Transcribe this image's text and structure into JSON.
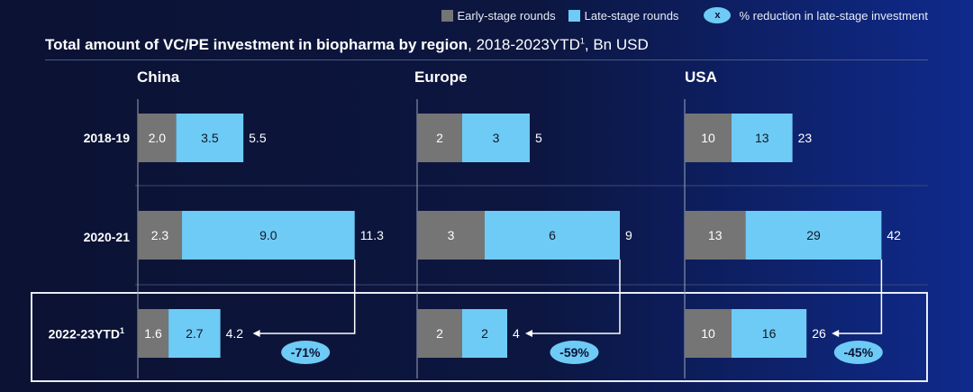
{
  "legend": {
    "early": "Early-stage rounds",
    "late": "Late-stage rounds",
    "bubble_symbol": "x",
    "bubble_label": "% reduction in late-stage investment"
  },
  "title": {
    "bold": "Total amount of VC/PE investment in biopharma by region",
    "rest": ", 2018-2023YTD",
    "sup": "1",
    "unit": ", Bn USD"
  },
  "colors": {
    "early": "#757575",
    "late": "#6ecbf5",
    "bubble": "#6ecbf5",
    "frame": "#e8ecf5"
  },
  "periods": [
    {
      "label": "2018-19",
      "sup": ""
    },
    {
      "label": "2020-21",
      "sup": ""
    },
    {
      "label": "2022-23YTD",
      "sup": "1"
    }
  ],
  "chart_data": {
    "type": "bar",
    "orientation": "horizontal-stacked",
    "regions": [
      {
        "name": "China",
        "rows": [
          {
            "early": "2.0",
            "late": "3.5",
            "total": "5.5"
          },
          {
            "early": "2.3",
            "late": "9.0",
            "total": "11.3"
          },
          {
            "early": "1.6",
            "late": "2.7",
            "total": "4.2"
          }
        ],
        "reduction": "-71%"
      },
      {
        "name": "Europe",
        "rows": [
          {
            "early": "2",
            "late": "3",
            "total": "5"
          },
          {
            "early": "3",
            "late": "6",
            "total": "9"
          },
          {
            "early": "2",
            "late": "2",
            "total": "4"
          }
        ],
        "reduction": "-59%"
      },
      {
        "name": "USA",
        "rows": [
          {
            "early": "10",
            "late": "13",
            "total": "23"
          },
          {
            "early": "13",
            "late": "29",
            "total": "42"
          },
          {
            "early": "10",
            "late": "16",
            "total": "26"
          }
        ],
        "reduction": "-45%"
      }
    ]
  }
}
